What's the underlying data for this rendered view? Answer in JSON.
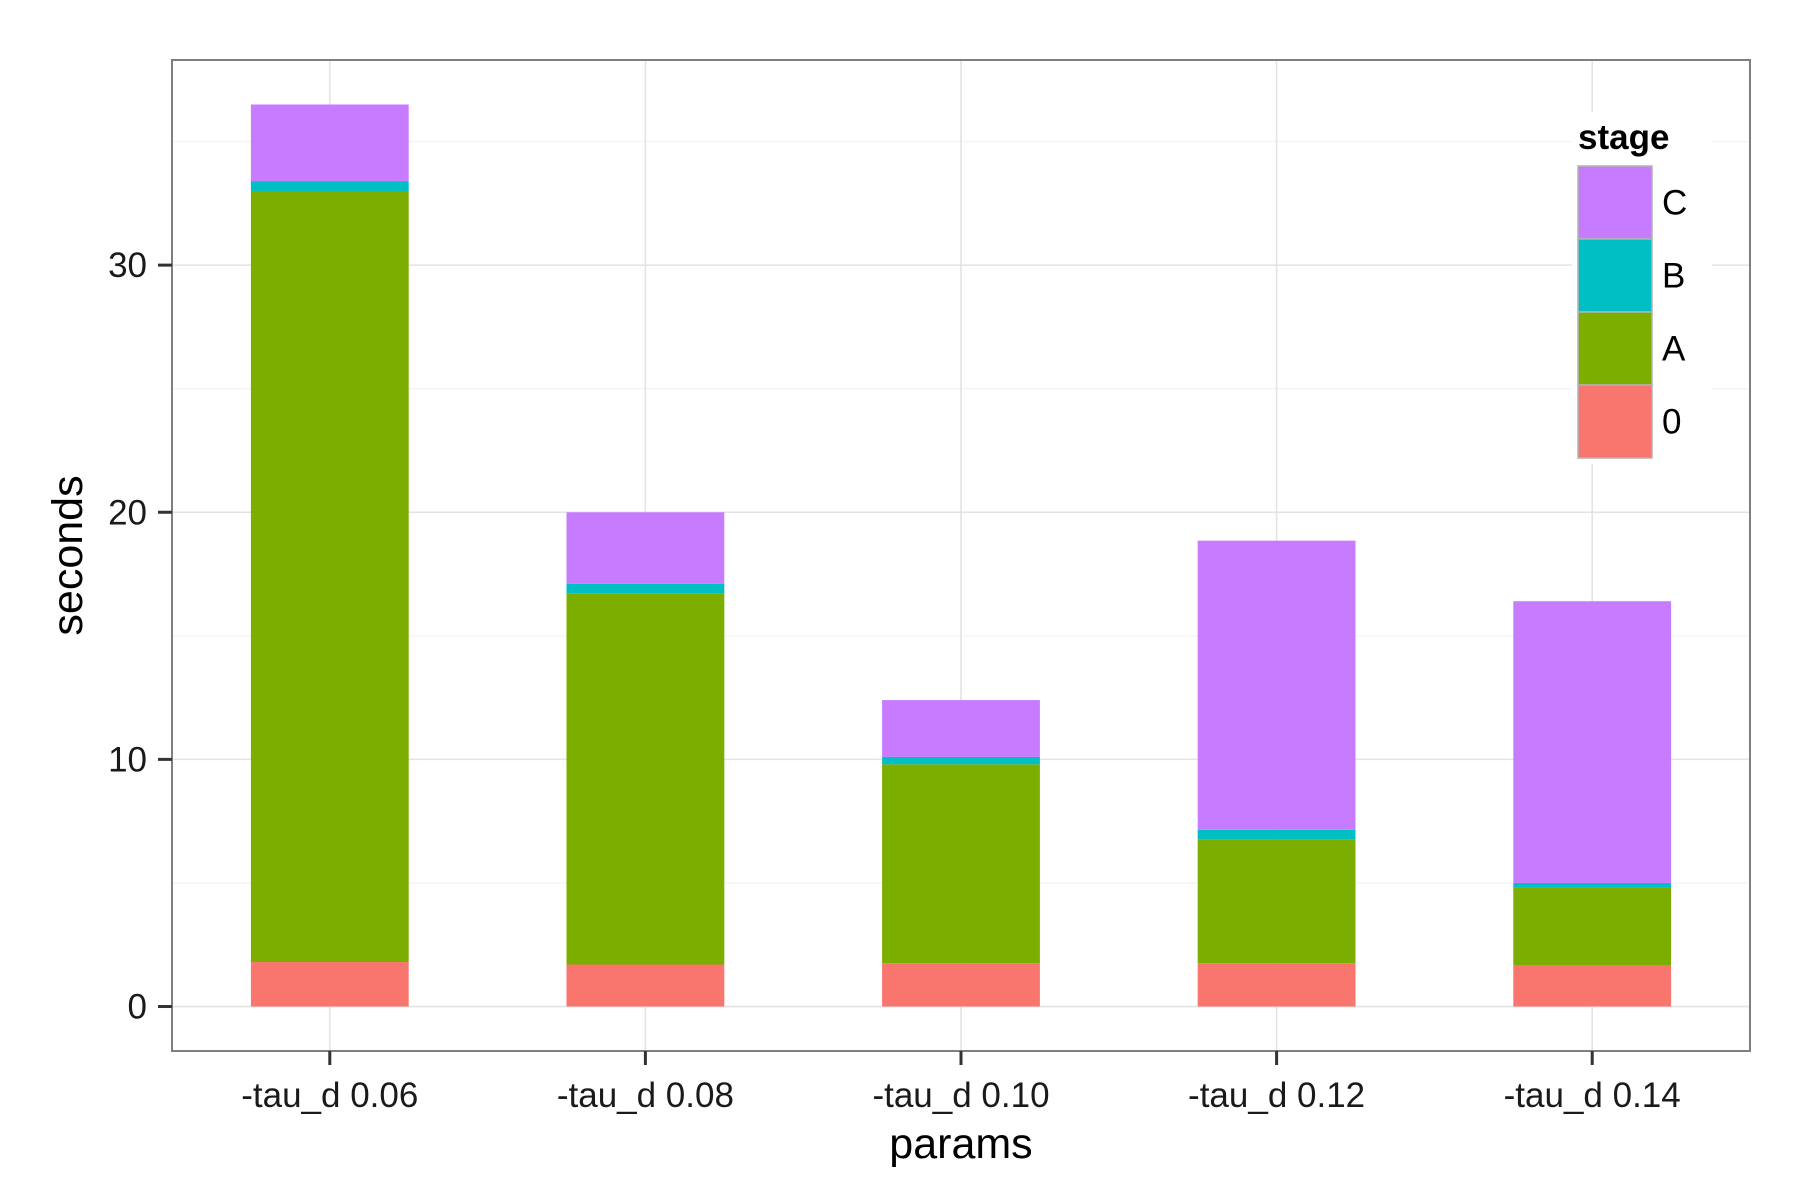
{
  "chart_data": {
    "type": "bar",
    "stacked": true,
    "title": "",
    "xlabel": "params",
    "ylabel": "seconds",
    "categories": [
      "-tau_d 0.06",
      "-tau_d 0.08",
      "-tau_d 0.10",
      "-tau_d 0.12",
      "-tau_d 0.14"
    ],
    "series": [
      {
        "name": "0",
        "color": "#F8766D",
        "values": [
          1.8,
          1.7,
          1.75,
          1.75,
          1.65
        ]
      },
      {
        "name": "A",
        "color": "#7CAE00",
        "values": [
          31.2,
          15.0,
          8.05,
          5.0,
          3.15
        ]
      },
      {
        "name": "B",
        "color": "#00BFC4",
        "values": [
          0.4,
          0.4,
          0.3,
          0.4,
          0.2
        ]
      },
      {
        "name": "C",
        "color": "#C77CFF",
        "values": [
          3.1,
          2.9,
          2.3,
          11.7,
          11.4
        ]
      }
    ],
    "ylim": [
      -1.8,
      38.3
    ],
    "yticks": [
      0,
      10,
      20,
      30
    ],
    "ytick_labels": [
      "0",
      "10",
      "20",
      "30"
    ],
    "grid": true,
    "legend": {
      "title": "stage",
      "position": "top-right",
      "order": [
        "C",
        "B",
        "A",
        "0"
      ]
    }
  }
}
